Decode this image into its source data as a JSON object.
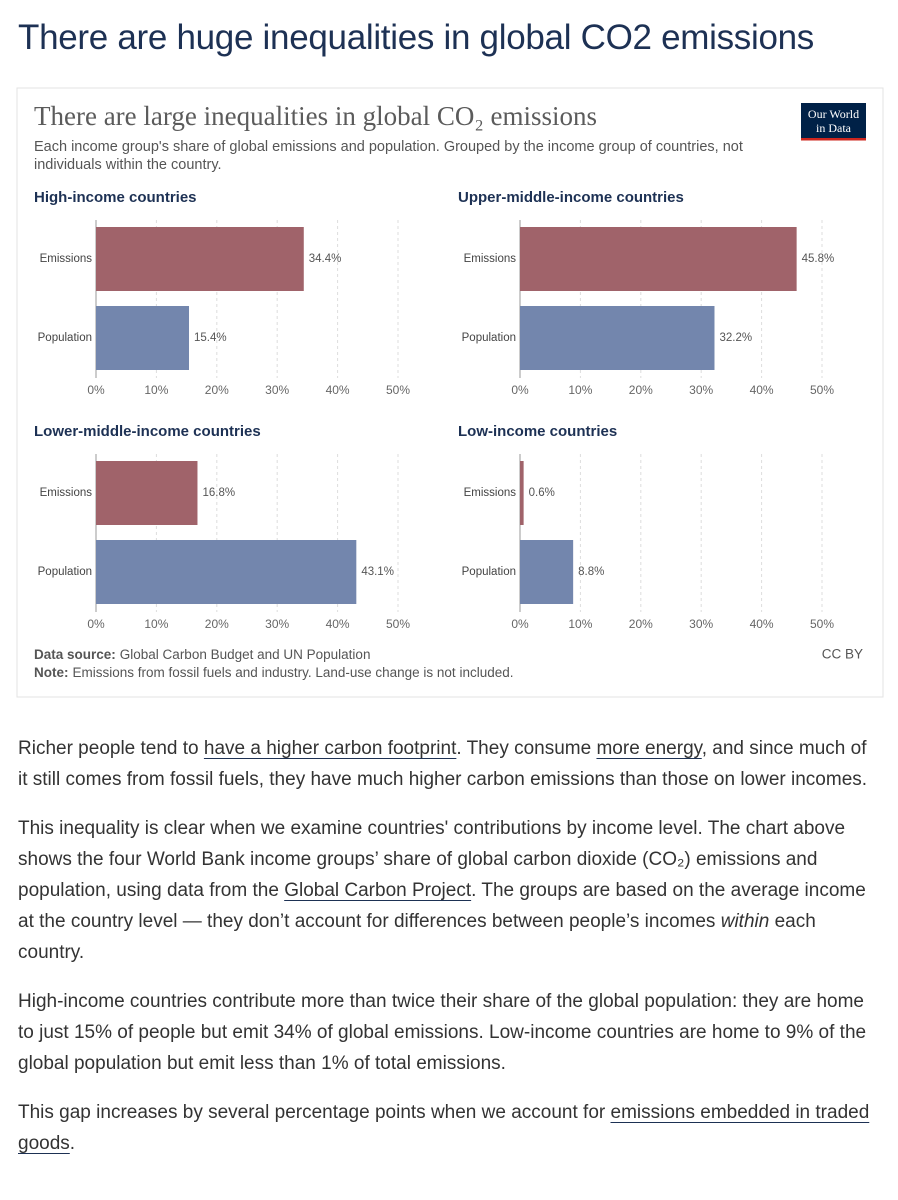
{
  "page": {
    "heading": "There are huge inequalities in global CO2 emissions"
  },
  "figure": {
    "title": "There are large inequalities in global CO₂ emissions",
    "subtitle": [
      "Each income group's share of global emissions and population. Grouped by the income group of countries, not",
      "individuals within the country."
    ],
    "logo": [
      "Our World",
      "in Data"
    ],
    "source_label": "Data source:",
    "source": "Global Carbon Budget and UN Population",
    "note_label": "Note:",
    "note": "Emissions from fossil fuels and industry. Land-use change is not included.",
    "license": "CC BY"
  },
  "chart_data": [
    {
      "type": "bar",
      "orientation": "horizontal",
      "title": "High-income countries",
      "categories": [
        "Emissions",
        "Population"
      ],
      "values": [
        34.4,
        15.4
      ],
      "value_labels": [
        "34.4%",
        "15.4%"
      ],
      "colors": [
        "#a0636a",
        "#7386ad"
      ],
      "xlim": [
        0,
        50
      ],
      "xticks": [
        {
          "value": 0,
          "label": "0%"
        },
        {
          "value": 10,
          "label": "10%"
        },
        {
          "value": 20,
          "label": "20%"
        },
        {
          "value": 30,
          "label": "30%"
        },
        {
          "value": 40,
          "label": "40%"
        },
        {
          "value": 50,
          "label": "50%"
        }
      ],
      "grid": true
    },
    {
      "type": "bar",
      "orientation": "horizontal",
      "title": "Upper-middle-income countries",
      "categories": [
        "Emissions",
        "Population"
      ],
      "values": [
        45.8,
        32.2
      ],
      "value_labels": [
        "45.8%",
        "32.2%"
      ],
      "colors": [
        "#a0636a",
        "#7386ad"
      ],
      "xlim": [
        0,
        50
      ],
      "xticks": [
        {
          "value": 0,
          "label": "0%"
        },
        {
          "value": 10,
          "label": "10%"
        },
        {
          "value": 20,
          "label": "20%"
        },
        {
          "value": 30,
          "label": "30%"
        },
        {
          "value": 40,
          "label": "40%"
        },
        {
          "value": 50,
          "label": "50%"
        }
      ],
      "grid": true
    },
    {
      "type": "bar",
      "orientation": "horizontal",
      "title": "Lower-middle-income countries",
      "categories": [
        "Emissions",
        "Population"
      ],
      "values": [
        16.8,
        43.1
      ],
      "value_labels": [
        "16.8%",
        "43.1%"
      ],
      "colors": [
        "#a0636a",
        "#7386ad"
      ],
      "xlim": [
        0,
        50
      ],
      "xticks": [
        {
          "value": 0,
          "label": "0%"
        },
        {
          "value": 10,
          "label": "10%"
        },
        {
          "value": 20,
          "label": "20%"
        },
        {
          "value": 30,
          "label": "30%"
        },
        {
          "value": 40,
          "label": "40%"
        },
        {
          "value": 50,
          "label": "50%"
        }
      ],
      "grid": true
    },
    {
      "type": "bar",
      "orientation": "horizontal",
      "title": "Low-income countries",
      "categories": [
        "Emissions",
        "Population"
      ],
      "values": [
        0.6,
        8.8
      ],
      "value_labels": [
        "0.6%",
        "8.8%"
      ],
      "colors": [
        "#a0636a",
        "#7386ad"
      ],
      "xlim": [
        0,
        50
      ],
      "xticks": [
        {
          "value": 0,
          "label": "0%"
        },
        {
          "value": 10,
          "label": "10%"
        },
        {
          "value": 20,
          "label": "20%"
        },
        {
          "value": 30,
          "label": "30%"
        },
        {
          "value": 40,
          "label": "40%"
        },
        {
          "value": 50,
          "label": "50%"
        }
      ],
      "grid": true
    }
  ],
  "article": {
    "paragraphs": [
      [
        {
          "text": "Richer people tend to "
        },
        {
          "link": "have a higher carbon footprint"
        },
        {
          "text": ". They consume "
        },
        {
          "link": "more energy"
        },
        {
          "text": ", and since much of it still comes from fossil fuels, they have much higher carbon emissions than those on lower incomes."
        }
      ],
      [
        {
          "text": "This inequality is clear when we examine countries' contributions by income level. The chart above shows the four World Bank income groups’ share of global carbon dioxide (CO₂) emissions and population, using data from the "
        },
        {
          "link": "Global Carbon Project"
        },
        {
          "text": ". The groups are based on the average income at the country level — they don’t account for differences between people’s incomes "
        },
        {
          "em": "within"
        },
        {
          "text": " each country."
        }
      ],
      [
        {
          "text": "High-income countries contribute more than twice their share of the global population: they are home to just 15% of people but emit 34% of global emissions. Low-income countries are home to 9% of the global population but emit less than 1% of total emissions."
        }
      ],
      [
        {
          "text": "This gap increases by several percentage points when we account for "
        },
        {
          "link": "emissions embedded in traded goods"
        },
        {
          "text": "."
        }
      ]
    ]
  }
}
